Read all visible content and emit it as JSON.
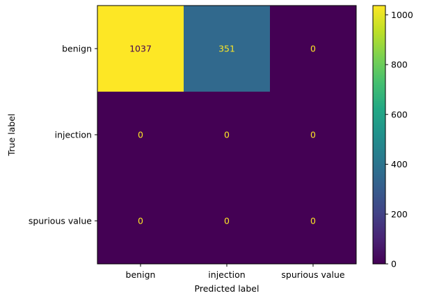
{
  "chart_data": {
    "type": "heatmap",
    "title": "",
    "xlabel": "Predicted label",
    "ylabel": "True label",
    "x_categories": [
      "benign",
      "injection",
      "spurious value"
    ],
    "y_categories": [
      "benign",
      "injection",
      "spurious value"
    ],
    "values": [
      [
        1037,
        351,
        0
      ],
      [
        0,
        0,
        0
      ],
      [
        0,
        0,
        0
      ]
    ],
    "colorbar": {
      "range": [
        0,
        1037
      ],
      "ticks": [
        0,
        200,
        400,
        600,
        800,
        1000
      ],
      "ticks_text": [
        "0",
        "200",
        "400",
        "600",
        "800",
        "1000"
      ],
      "colormap": "viridis"
    },
    "grid": false,
    "colors": {
      "low": "#440154",
      "mid": "#31688e",
      "high": "#fde725",
      "text_on_dark": "#fde725",
      "text_on_light": "#440154"
    }
  }
}
